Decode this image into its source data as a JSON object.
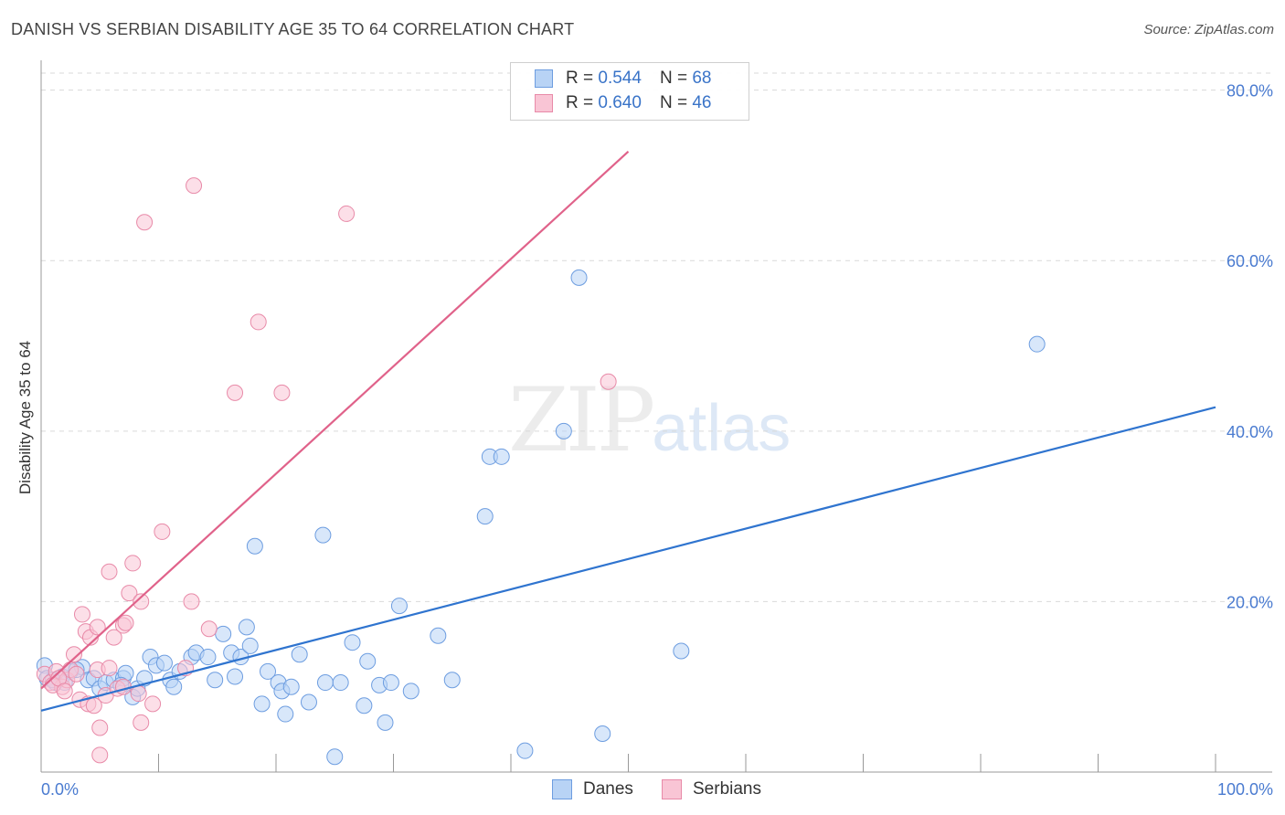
{
  "title": "DANISH VS SERBIAN DISABILITY AGE 35 TO 64 CORRELATION CHART",
  "source": "Source: ZipAtlas.com",
  "watermark": {
    "zip": "ZIP",
    "atlas": "atlas"
  },
  "legend_top": [
    {
      "r_label": "R = ",
      "r_value": "0.544",
      "n_label": "N = ",
      "n_value": "68",
      "color_fill": "#b8d3f5",
      "color_stroke": "#6d9de0"
    },
    {
      "r_label": "R = ",
      "r_value": "0.640",
      "n_label": "N = ",
      "n_value": "46",
      "color_fill": "#f9c5d5",
      "color_stroke": "#e88aa8"
    }
  ],
  "legend_bottom": [
    {
      "label": "Danes",
      "color_fill": "#b8d3f5",
      "color_stroke": "#6d9de0"
    },
    {
      "label": "Serbians",
      "color_fill": "#f9c5d5",
      "color_stroke": "#e88aa8"
    }
  ],
  "chart_data": {
    "type": "scatter",
    "title": "DANISH VS SERBIAN DISABILITY AGE 35 TO 64 CORRELATION CHART",
    "ylabel": "Disability Age 35 to 64",
    "xlabel": "",
    "xlim": [
      0,
      100
    ],
    "ylim": [
      0,
      82
    ],
    "x_tick_labels": [
      "0.0%",
      "100.0%"
    ],
    "y_tick_labels": [
      "20.0%",
      "40.0%",
      "60.0%",
      "80.0%"
    ],
    "y_ticks": [
      20,
      40,
      60,
      80
    ],
    "grid": true,
    "series": [
      {
        "name": "Danes",
        "color": "#6d9de0",
        "fill": "#b8d3f5",
        "trend_color": "#2f74cf",
        "trend": [
          [
            0,
            7.2
          ],
          [
            100,
            42.8
          ]
        ],
        "points": [
          [
            0.3,
            12.5
          ],
          [
            0.5,
            11.0
          ],
          [
            1.2,
            10.5
          ],
          [
            1.8,
            11.2
          ],
          [
            2.5,
            11.8
          ],
          [
            3.5,
            12.3
          ],
          [
            4.0,
            10.8
          ],
          [
            4.5,
            11.0
          ],
          [
            5.0,
            9.8
          ],
          [
            5.5,
            10.5
          ],
          [
            6.2,
            10.8
          ],
          [
            7.0,
            11.0
          ],
          [
            7.2,
            11.6
          ],
          [
            7.8,
            8.8
          ],
          [
            8.2,
            9.8
          ],
          [
            8.8,
            11.0
          ],
          [
            9.3,
            13.5
          ],
          [
            9.8,
            12.5
          ],
          [
            10.5,
            12.8
          ],
          [
            11.0,
            10.8
          ],
          [
            11.3,
            10.0
          ],
          [
            11.8,
            11.8
          ],
          [
            12.8,
            13.5
          ],
          [
            13.2,
            14.0
          ],
          [
            14.2,
            13.5
          ],
          [
            14.8,
            10.8
          ],
          [
            15.5,
            16.2
          ],
          [
            16.2,
            14.0
          ],
          [
            16.5,
            11.2
          ],
          [
            17.0,
            13.5
          ],
          [
            17.5,
            17.0
          ],
          [
            17.8,
            14.8
          ],
          [
            18.2,
            26.5
          ],
          [
            18.8,
            8.0
          ],
          [
            19.3,
            11.8
          ],
          [
            20.2,
            10.5
          ],
          [
            20.5,
            9.5
          ],
          [
            20.8,
            6.8
          ],
          [
            21.3,
            10.0
          ],
          [
            22.0,
            13.8
          ],
          [
            22.8,
            8.2
          ],
          [
            24.0,
            27.8
          ],
          [
            24.2,
            10.5
          ],
          [
            25.0,
            1.8
          ],
          [
            25.5,
            10.5
          ],
          [
            26.5,
            15.2
          ],
          [
            27.5,
            7.8
          ],
          [
            27.8,
            13.0
          ],
          [
            28.8,
            10.2
          ],
          [
            29.3,
            5.8
          ],
          [
            29.8,
            10.5
          ],
          [
            30.5,
            19.5
          ],
          [
            31.5,
            9.5
          ],
          [
            33.8,
            16.0
          ],
          [
            35.0,
            10.8
          ],
          [
            37.8,
            30.0
          ],
          [
            38.2,
            37.0
          ],
          [
            39.2,
            37.0
          ],
          [
            41.2,
            2.5
          ],
          [
            44.5,
            40.0
          ],
          [
            45.8,
            58.0
          ],
          [
            47.8,
            4.5
          ],
          [
            54.5,
            14.2
          ],
          [
            84.8,
            50.2
          ],
          [
            1.0,
            10.8
          ],
          [
            2.0,
            10.5
          ],
          [
            6.8,
            10.2
          ],
          [
            3.0,
            12.0
          ]
        ]
      },
      {
        "name": "Serbians",
        "color": "#e88aa8",
        "fill": "#f9c5d5",
        "trend_color": "#e0628a",
        "trend": [
          [
            0,
            9.8
          ],
          [
            50,
            72.8
          ]
        ],
        "points": [
          [
            0.3,
            11.5
          ],
          [
            0.8,
            10.5
          ],
          [
            1.3,
            11.8
          ],
          [
            1.8,
            10.0
          ],
          [
            2.2,
            10.8
          ],
          [
            2.5,
            12.0
          ],
          [
            2.8,
            13.8
          ],
          [
            3.0,
            11.5
          ],
          [
            3.3,
            8.5
          ],
          [
            3.5,
            18.5
          ],
          [
            3.8,
            16.5
          ],
          [
            4.0,
            8.0
          ],
          [
            4.2,
            15.8
          ],
          [
            4.5,
            7.8
          ],
          [
            4.8,
            17.0
          ],
          [
            4.8,
            12.0
          ],
          [
            5.0,
            5.2
          ],
          [
            5.0,
            2.0
          ],
          [
            5.5,
            9.0
          ],
          [
            5.8,
            12.2
          ],
          [
            5.8,
            23.5
          ],
          [
            6.2,
            15.8
          ],
          [
            6.5,
            9.8
          ],
          [
            7.0,
            17.2
          ],
          [
            7.2,
            17.5
          ],
          [
            7.5,
            21.0
          ],
          [
            7.8,
            24.5
          ],
          [
            8.3,
            9.2
          ],
          [
            8.5,
            5.8
          ],
          [
            8.5,
            20.0
          ],
          [
            8.8,
            64.5
          ],
          [
            9.5,
            8.0
          ],
          [
            10.3,
            28.2
          ],
          [
            12.3,
            12.2
          ],
          [
            12.8,
            20.0
          ],
          [
            13.0,
            68.8
          ],
          [
            14.3,
            16.8
          ],
          [
            16.5,
            44.5
          ],
          [
            18.5,
            52.8
          ],
          [
            20.5,
            44.5
          ],
          [
            26.0,
            65.5
          ],
          [
            48.3,
            45.8
          ],
          [
            1.0,
            10.2
          ],
          [
            1.5,
            11.0
          ],
          [
            2.0,
            9.5
          ],
          [
            7.0,
            10.0
          ]
        ]
      }
    ]
  }
}
